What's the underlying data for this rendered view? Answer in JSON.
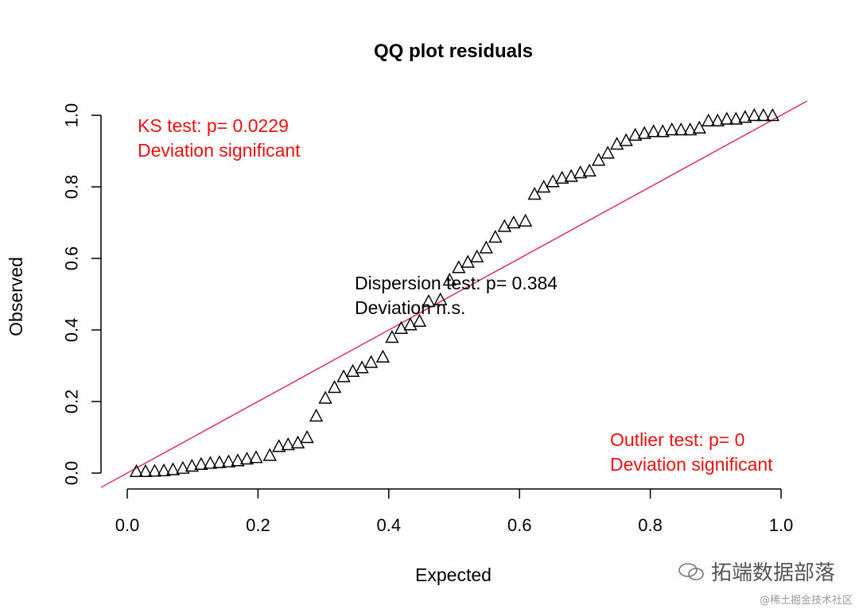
{
  "chart_data": {
    "type": "scatter",
    "title": "QQ plot residuals",
    "xlabel": "Expected",
    "ylabel": "Observed",
    "xlim": [
      0,
      1
    ],
    "ylim": [
      0,
      1
    ],
    "xticks": [
      "0.0",
      "0.2",
      "0.4",
      "0.6",
      "0.8",
      "1.0"
    ],
    "yticks": [
      "0.0",
      "0.2",
      "0.4",
      "0.6",
      "0.8",
      "1.0"
    ],
    "xtick_values": [
      0,
      0.2,
      0.4,
      0.6,
      0.8,
      1.0
    ],
    "ytick_values": [
      0,
      0.2,
      0.4,
      0.6,
      0.8,
      1.0
    ],
    "marker": "triangle",
    "reference_line": {
      "intercept": 0,
      "slope": 1,
      "color": "#dd3355"
    },
    "x": [
      0.014,
      0.028,
      0.042,
      0.056,
      0.07,
      0.085,
      0.099,
      0.113,
      0.127,
      0.141,
      0.155,
      0.169,
      0.183,
      0.197,
      0.218,
      0.232,
      0.246,
      0.261,
      0.275,
      0.289,
      0.303,
      0.317,
      0.331,
      0.345,
      0.359,
      0.373,
      0.391,
      0.405,
      0.419,
      0.433,
      0.447,
      0.461,
      0.479,
      0.493,
      0.507,
      0.521,
      0.535,
      0.549,
      0.563,
      0.577,
      0.591,
      0.609,
      0.623,
      0.637,
      0.651,
      0.665,
      0.679,
      0.693,
      0.707,
      0.721,
      0.735,
      0.749,
      0.763,
      0.777,
      0.791,
      0.805,
      0.819,
      0.833,
      0.847,
      0.861,
      0.875,
      0.889,
      0.903,
      0.917,
      0.931,
      0.945,
      0.959,
      0.973,
      0.987
    ],
    "y": [
      0.005,
      0.005,
      0.006,
      0.007,
      0.01,
      0.014,
      0.02,
      0.025,
      0.028,
      0.03,
      0.032,
      0.035,
      0.04,
      0.044,
      0.05,
      0.075,
      0.08,
      0.085,
      0.1,
      0.16,
      0.21,
      0.24,
      0.27,
      0.285,
      0.295,
      0.31,
      0.325,
      0.38,
      0.405,
      0.415,
      0.425,
      0.48,
      0.485,
      0.54,
      0.575,
      0.59,
      0.605,
      0.63,
      0.66,
      0.69,
      0.7,
      0.705,
      0.78,
      0.8,
      0.815,
      0.825,
      0.83,
      0.84,
      0.845,
      0.875,
      0.895,
      0.92,
      0.93,
      0.945,
      0.95,
      0.955,
      0.955,
      0.96,
      0.96,
      0.96,
      0.965,
      0.985,
      0.985,
      0.99,
      0.99,
      0.995,
      1.0,
      1.0,
      1.0
    ],
    "annotations": [
      {
        "lines": [
          "KS test: p= 0.0229",
          "Deviation  significant"
        ],
        "color": "#ee1111",
        "position": "top-left"
      },
      {
        "lines": [
          "Dispersion test: p= 0.384",
          "Deviation  n.s."
        ],
        "color": "#000000",
        "position": "center"
      },
      {
        "lines": [
          "Outlier test: p= 0",
          "Deviation  significant"
        ],
        "color": "#ee1111",
        "position": "bottom-right"
      }
    ]
  },
  "watermark": {
    "main": "拓端数据部落",
    "sub": "@稀土掘金技术社区"
  }
}
